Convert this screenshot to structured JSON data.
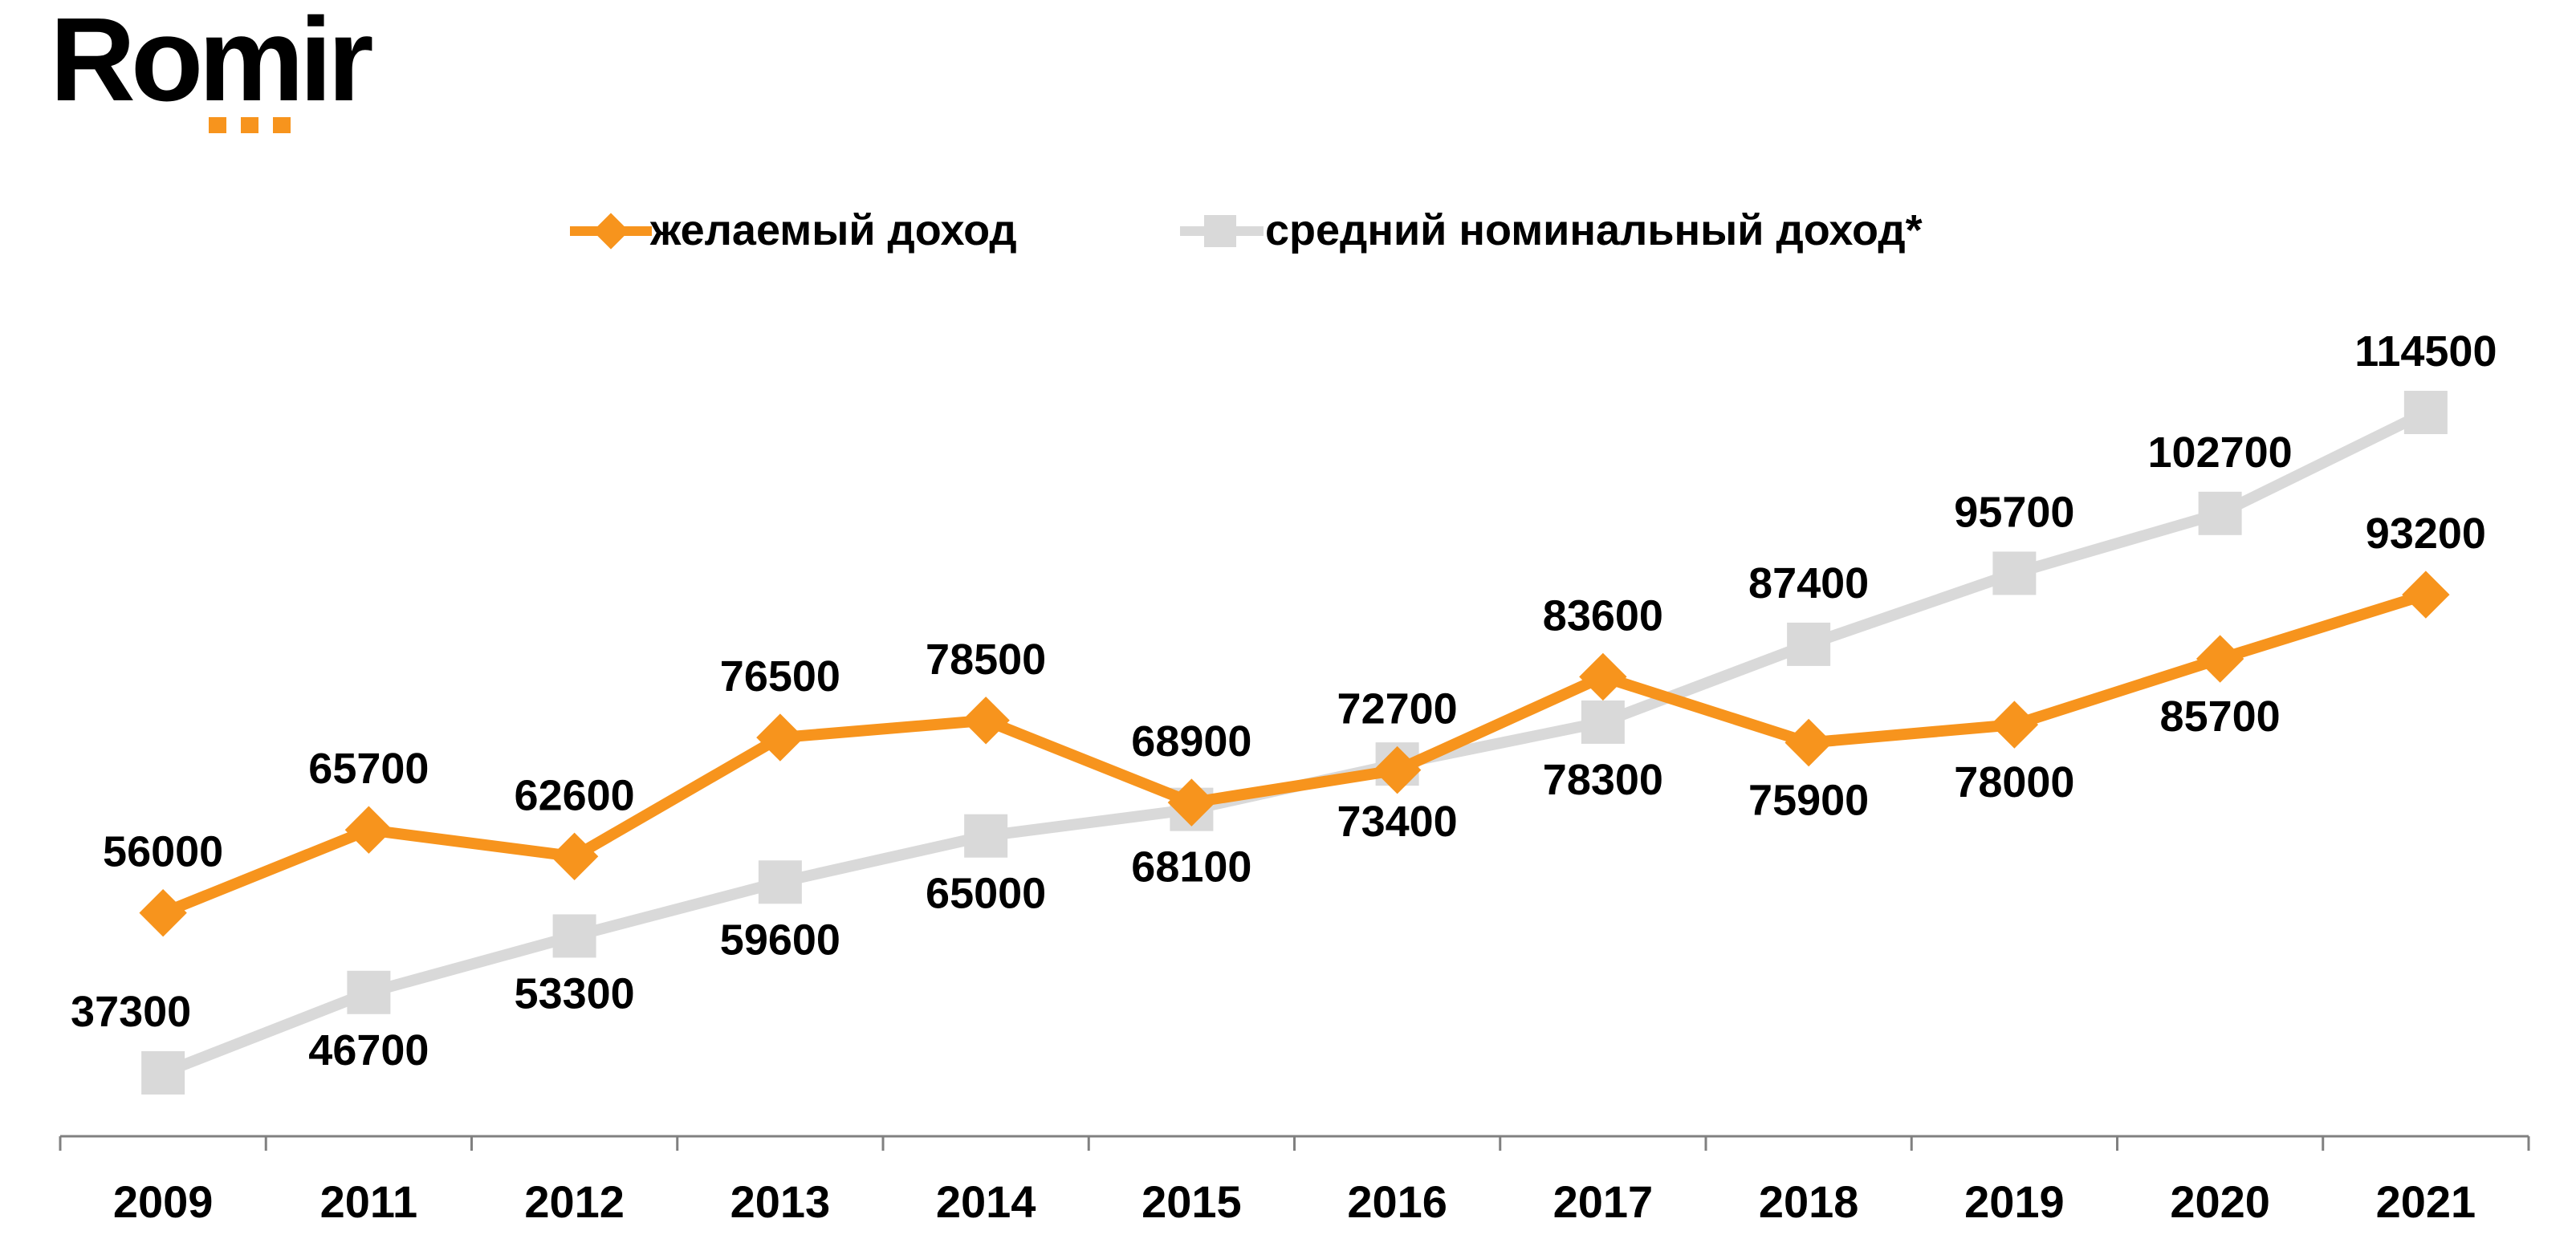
{
  "logo": {
    "text": "Romir",
    "accent_color": "#F7941D"
  },
  "colors": {
    "desired": "#F7941D",
    "nominal": "#D9D9D9",
    "axis": "#808080",
    "text": "#000000"
  },
  "chart_data": {
    "type": "line",
    "title": "",
    "xlabel": "",
    "ylabel": "",
    "legend_position": "top",
    "grid": false,
    "categories": [
      "2009",
      "2011",
      "2012",
      "2013",
      "2014",
      "2015",
      "2016",
      "2017",
      "2018",
      "2019",
      "2020",
      "2021"
    ],
    "series": [
      {
        "name": "желаемый доход",
        "color": "#F7941D",
        "marker": "diamond",
        "values": [
          56000,
          65700,
          62600,
          76500,
          78500,
          68900,
          72700,
          83600,
          75900,
          78000,
          85700,
          93200
        ],
        "labels": [
          "56000",
          "65700",
          "62600",
          "76500",
          "78500",
          "68900",
          "72700",
          "83600",
          "75900",
          "78000",
          "85700",
          "93200"
        ],
        "label_side": [
          "above",
          "above",
          "above",
          "above",
          "above",
          "above",
          "above",
          "above",
          "below",
          "below",
          "below",
          "above"
        ]
      },
      {
        "name": "средний номинальный доход*",
        "color": "#D9D9D9",
        "marker": "square",
        "values": [
          37300,
          46700,
          53300,
          59600,
          65000,
          68100,
          73400,
          78300,
          87400,
          95700,
          102700,
          114500
        ],
        "labels": [
          "37300",
          "46700",
          "53300",
          "59600",
          "65000",
          "68100",
          "73400",
          "78300",
          "87400",
          "95700",
          "102700",
          "114500"
        ],
        "label_side": [
          "above",
          "below",
          "below",
          "below",
          "below",
          "below",
          "below",
          "below",
          "above",
          "above",
          "above",
          "above"
        ]
      }
    ]
  }
}
